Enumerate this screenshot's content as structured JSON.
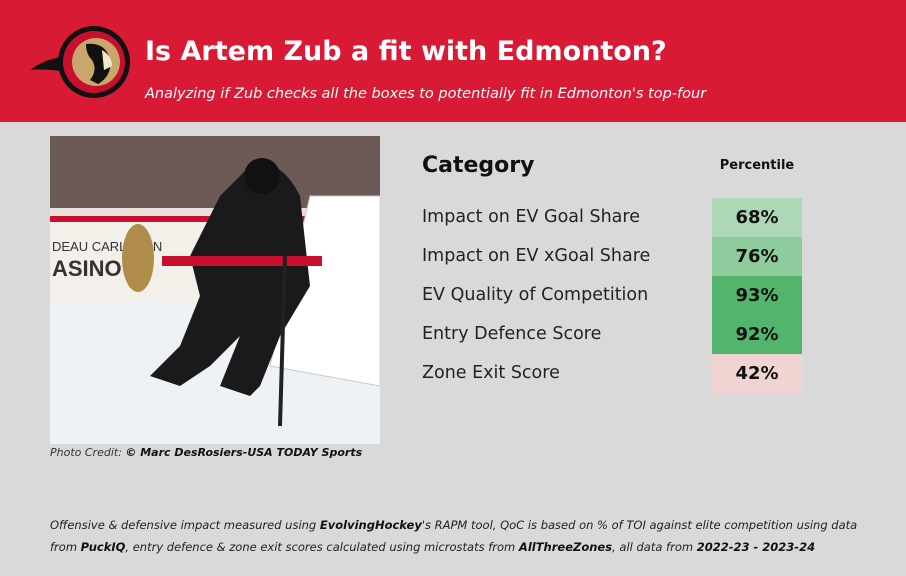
{
  "header": {
    "title": "Is Artem Zub a fit with Edmonton?",
    "subtitle": "Analyzing if Zub checks all the boxes to potentially fit in Edmonton's top-four",
    "logo": "ottawa-senators-logo",
    "color": "#d91a35"
  },
  "photo": {
    "credit_label": "Photo Credit: ",
    "credit_value": "© Marc DesRosiers-USA TODAY Sports"
  },
  "table": {
    "category_header": "Category",
    "percentile_header": "Percentile",
    "rows": [
      {
        "label": "Impact on EV Goal Share",
        "value": "68%",
        "color": "#acd8b6"
      },
      {
        "label": "Impact on EV xGoal Share",
        "value": "76%",
        "color": "#8fcc9d"
      },
      {
        "label": "EV Quality of Competition",
        "value": "93%",
        "color": "#53b46b"
      },
      {
        "label": "Entry Defence Score",
        "value": "92%",
        "color": "#53b46b"
      },
      {
        "label": "Zone Exit Score",
        "value": "42%",
        "color": "#f0d4d2"
      }
    ]
  },
  "footer": {
    "segments": [
      {
        "text": "Offensive & defensive impact measured using ",
        "bold": false
      },
      {
        "text": "EvolvingHockey",
        "bold": true
      },
      {
        "text": "'s RAPM tool, QoC is based on % of TOI against elite competition using data from ",
        "bold": false
      },
      {
        "text": "PuckIQ",
        "bold": true
      },
      {
        "text": ", entry defence & zone exit scores calculated using microstats from ",
        "bold": false
      },
      {
        "text": "AllThreeZones",
        "bold": true
      },
      {
        "text": ", all data from ",
        "bold": false
      },
      {
        "text": "2022-23 - 2023-24",
        "bold": true
      }
    ]
  }
}
